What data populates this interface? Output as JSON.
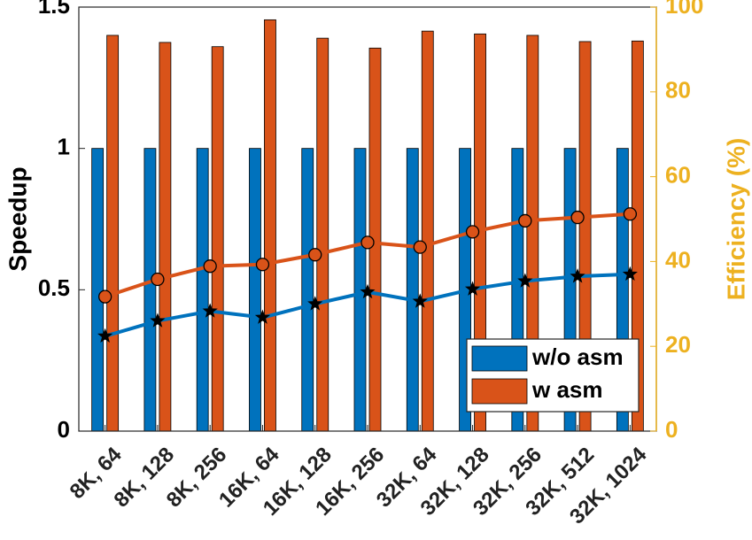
{
  "chart_data": {
    "type": "bar",
    "categories": [
      "8K, 64",
      "8K, 128",
      "8K, 256",
      "16K, 64",
      "16K, 128",
      "16K, 256",
      "32K, 64",
      "32K, 128",
      "32K, 256",
      "32K, 512",
      "32K, 1024"
    ],
    "series": [
      {
        "name": "w/o asm",
        "axis": "left",
        "kind": "bar",
        "color": "#0072BD",
        "values": [
          1,
          1,
          1,
          1,
          1,
          1,
          1,
          1,
          1,
          1,
          1
        ]
      },
      {
        "name": "w asm",
        "axis": "left",
        "kind": "bar",
        "color": "#D95319",
        "values": [
          1.4,
          1.375,
          1.36,
          1.455,
          1.39,
          1.355,
          1.415,
          1.405,
          1.4,
          1.378,
          1.38
        ]
      },
      {
        "name": "",
        "axis": "right",
        "kind": "line",
        "marker": "star",
        "color": "#0072BD",
        "values": [
          22.4,
          26.0,
          28.3,
          26.8,
          30.0,
          32.8,
          30.6,
          33.5,
          35.4,
          36.5,
          37.0
        ]
      },
      {
        "name": "",
        "axis": "right",
        "kind": "line",
        "marker": "circle",
        "color": "#D95319",
        "values": [
          31.7,
          35.8,
          38.9,
          39.3,
          41.6,
          44.5,
          43.4,
          47.0,
          49.6,
          50.4,
          51.2
        ]
      }
    ],
    "title": "",
    "xlabel": "",
    "ylabel": "Speedup",
    "y2label": "Efficiency (%)",
    "ylim": [
      0,
      1.5
    ],
    "y2lim": [
      0,
      100
    ],
    "yticks": [
      "0",
      "0.5",
      "1",
      "1.5"
    ],
    "y2ticks": [
      "0",
      "20",
      "40",
      "60",
      "80",
      "100"
    ],
    "y2color": "#EDB120",
    "grid": false,
    "legend": "bottom-right"
  }
}
